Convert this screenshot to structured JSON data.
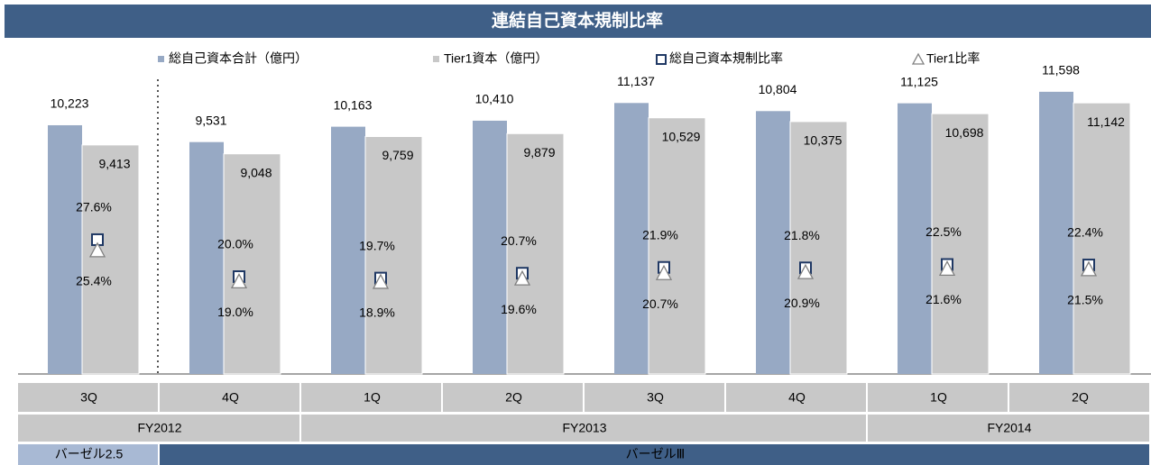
{
  "chart_data": {
    "type": "bar",
    "title": "連結自己資本規制比率",
    "categories": [
      "3Q",
      "4Q",
      "1Q",
      "2Q",
      "3Q",
      "4Q",
      "1Q",
      "2Q"
    ],
    "fiscal_years": [
      "FY2012",
      "FY2013",
      "FY2014"
    ],
    "regimes": [
      "バーゼル2.5",
      "バーゼルⅢ"
    ],
    "ylim": [
      0,
      12000
    ],
    "y2lim": [
      0,
      60
    ],
    "series": [
      {
        "name": "総自己資本合計（億円）",
        "color": "#97a9c4",
        "kind": "bar",
        "values": [
          10223,
          9531,
          10163,
          10410,
          11137,
          10804,
          11125,
          11598
        ],
        "value_labels": [
          "10,223",
          "9,531",
          "10,163",
          "10,410",
          "11,137",
          "10,804",
          "11,125",
          "11,598"
        ]
      },
      {
        "name": "Tier1資本（億円）",
        "color": "#c8c8c8",
        "kind": "bar",
        "values": [
          9413,
          9048,
          9759,
          9879,
          10529,
          10375,
          10698,
          11142
        ],
        "value_labels": [
          "9,413",
          "9,048",
          "9,759",
          "9,879",
          "10,529",
          "10,375",
          "10,698",
          "11,142"
        ]
      },
      {
        "name": "総自己資本規制比率",
        "color": "#1f3864",
        "kind": "square",
        "axis": "y2",
        "values": [
          27.6,
          20.0,
          19.7,
          20.7,
          21.9,
          21.8,
          22.5,
          22.4
        ],
        "value_labels": [
          "27.6%",
          "20.0%",
          "19.7%",
          "20.7%",
          "21.9%",
          "21.8%",
          "22.5%",
          "22.4%"
        ]
      },
      {
        "name": "Tier1比率",
        "color": "#808080",
        "kind": "triangle",
        "axis": "y2",
        "values": [
          25.4,
          19.0,
          18.9,
          19.6,
          20.7,
          20.9,
          21.6,
          21.5
        ],
        "value_labels": [
          "25.4%",
          "19.0%",
          "18.9%",
          "19.6%",
          "20.7%",
          "20.9%",
          "21.6%",
          "21.5%"
        ]
      }
    ]
  }
}
